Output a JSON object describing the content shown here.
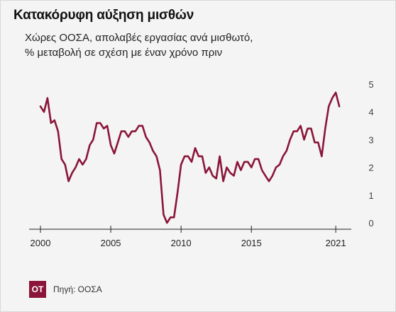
{
  "title": "Κατακόρυφη αύξηση μισθών",
  "subtitle_line1": "Χώρες ΟΟΣΑ, απολαβές εργασίας ανά μισθωτό,",
  "subtitle_line2": "% μεταβολή σε σχέση με έναν χρόνο πριν",
  "logo_text": "OT",
  "source": "Πηγή: ΟΟΣΑ",
  "colors": {
    "line": "#8a1538",
    "background": "#f4f4f4",
    "logo": "#8a1538"
  },
  "chart_data": {
    "type": "line",
    "title": "Κατακόρυφη αύξηση μισθών",
    "xlabel": "",
    "ylabel": "",
    "xlim": [
      2000,
      2021.6
    ],
    "ylim": [
      0,
      5
    ],
    "x_ticks": [
      2000,
      2005,
      2010,
      2015,
      2021
    ],
    "y_ticks": [
      0,
      1,
      2,
      3,
      4,
      5
    ],
    "y_axis_side": "right",
    "grid": false,
    "series": [
      {
        "color": "#8a1538",
        "points": [
          [
            2000.0,
            4.2
          ],
          [
            2000.25,
            4.0
          ],
          [
            2000.5,
            4.5
          ],
          [
            2000.75,
            3.6
          ],
          [
            2001.0,
            3.7
          ],
          [
            2001.25,
            3.3
          ],
          [
            2001.5,
            2.3
          ],
          [
            2001.75,
            2.1
          ],
          [
            2002.0,
            1.5
          ],
          [
            2002.25,
            1.8
          ],
          [
            2002.5,
            2.0
          ],
          [
            2002.75,
            2.3
          ],
          [
            2003.0,
            2.1
          ],
          [
            2003.25,
            2.3
          ],
          [
            2003.5,
            2.8
          ],
          [
            2003.75,
            3.0
          ],
          [
            2004.0,
            3.6
          ],
          [
            2004.25,
            3.6
          ],
          [
            2004.5,
            3.4
          ],
          [
            2004.75,
            3.5
          ],
          [
            2005.0,
            2.8
          ],
          [
            2005.25,
            2.5
          ],
          [
            2005.5,
            2.9
          ],
          [
            2005.75,
            3.3
          ],
          [
            2006.0,
            3.3
          ],
          [
            2006.25,
            3.1
          ],
          [
            2006.5,
            3.3
          ],
          [
            2006.75,
            3.3
          ],
          [
            2007.0,
            3.5
          ],
          [
            2007.25,
            3.5
          ],
          [
            2007.5,
            3.1
          ],
          [
            2007.75,
            2.9
          ],
          [
            2008.0,
            2.6
          ],
          [
            2008.25,
            2.4
          ],
          [
            2008.5,
            1.9
          ],
          [
            2008.75,
            0.3
          ],
          [
            2009.0,
            0.0
          ],
          [
            2009.25,
            0.2
          ],
          [
            2009.5,
            0.2
          ],
          [
            2009.75,
            1.1
          ],
          [
            2010.0,
            2.1
          ],
          [
            2010.25,
            2.4
          ],
          [
            2010.5,
            2.4
          ],
          [
            2010.75,
            2.2
          ],
          [
            2011.0,
            2.7
          ],
          [
            2011.25,
            2.4
          ],
          [
            2011.5,
            2.4
          ],
          [
            2011.75,
            1.8
          ],
          [
            2012.0,
            2.0
          ],
          [
            2012.25,
            1.7
          ],
          [
            2012.5,
            1.6
          ],
          [
            2012.75,
            2.4
          ],
          [
            2013.0,
            1.5
          ],
          [
            2013.25,
            2.0
          ],
          [
            2013.5,
            1.8
          ],
          [
            2013.75,
            1.7
          ],
          [
            2014.0,
            2.2
          ],
          [
            2014.25,
            1.9
          ],
          [
            2014.5,
            2.2
          ],
          [
            2014.75,
            2.2
          ],
          [
            2015.0,
            2.0
          ],
          [
            2015.25,
            2.3
          ],
          [
            2015.5,
            2.3
          ],
          [
            2015.75,
            1.9
          ],
          [
            2016.0,
            1.7
          ],
          [
            2016.25,
            1.5
          ],
          [
            2016.5,
            1.7
          ],
          [
            2016.75,
            2.0
          ],
          [
            2017.0,
            2.1
          ],
          [
            2017.25,
            2.4
          ],
          [
            2017.5,
            2.6
          ],
          [
            2017.75,
            3.0
          ],
          [
            2018.0,
            3.3
          ],
          [
            2018.25,
            3.3
          ],
          [
            2018.5,
            3.5
          ],
          [
            2018.75,
            3.0
          ],
          [
            2019.0,
            3.4
          ],
          [
            2019.25,
            3.4
          ],
          [
            2019.5,
            2.9
          ],
          [
            2019.75,
            2.9
          ],
          [
            2020.0,
            2.4
          ],
          [
            2020.25,
            3.4
          ],
          [
            2020.5,
            4.2
          ],
          [
            2020.75,
            4.5
          ],
          [
            2021.0,
            4.7
          ],
          [
            2021.25,
            4.2
          ]
        ]
      }
    ]
  }
}
